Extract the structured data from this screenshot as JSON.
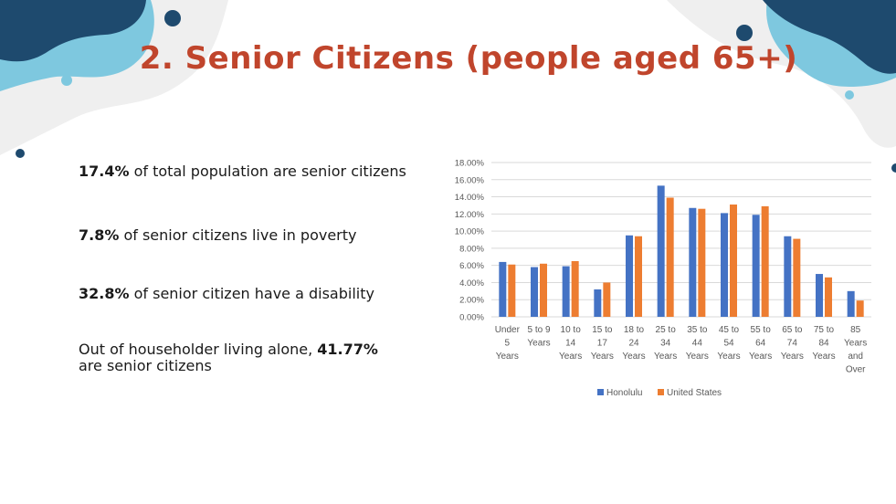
{
  "slide": {
    "title": "2. Senior Citizens (people aged 65+)"
  },
  "stats": [
    {
      "bold": "17.4%",
      "text": " of total  population are senior citizens"
    },
    {
      "bold": "7.8%",
      "text": " of senior citizens live in poverty"
    },
    {
      "bold": "32.8%",
      "text": " of senior citizen have a disability"
    },
    {
      "prefix": "Out of householder living alone, ",
      "bold": "41.77%",
      "suffix": "are senior citizens"
    }
  ],
  "colors": {
    "title": "#c0452c",
    "honolulu": "#4472c4",
    "united_states": "#ed7d31",
    "deco_dark": "#1e4a6e",
    "deco_light": "#7ec8df",
    "deco_grey": "#eeeeee"
  },
  "chart_data": {
    "type": "bar",
    "categories": [
      [
        "Under",
        "5",
        "Years"
      ],
      [
        "5 to 9",
        "Years"
      ],
      [
        "10 to",
        "14",
        "Years"
      ],
      [
        "15 to",
        "17",
        "Years"
      ],
      [
        "18 to",
        "24",
        "Years"
      ],
      [
        "25 to",
        "34",
        "Years"
      ],
      [
        "35 to",
        "44",
        "Years"
      ],
      [
        "45 to",
        "54",
        "Years"
      ],
      [
        "55 to",
        "64",
        "Years"
      ],
      [
        "65 to",
        "74",
        "Years"
      ],
      [
        "75 to",
        "84",
        "Years"
      ],
      [
        "85",
        "Years",
        "and",
        "Over"
      ]
    ],
    "series": [
      {
        "name": "Honolulu",
        "values": [
          6.4,
          5.8,
          5.9,
          3.2,
          9.5,
          15.3,
          12.7,
          12.1,
          11.9,
          9.4,
          5.0,
          3.0
        ]
      },
      {
        "name": "United States",
        "values": [
          6.1,
          6.2,
          6.5,
          4.0,
          9.4,
          13.9,
          12.6,
          13.1,
          12.9,
          9.1,
          4.6,
          1.9
        ]
      }
    ],
    "ylim": [
      0,
      18
    ],
    "yticks": [
      "0.00%",
      "2.00%",
      "4.00%",
      "6.00%",
      "8.00%",
      "10.00%",
      "12.00%",
      "14.00%",
      "16.00%",
      "18.00%"
    ],
    "grid": true,
    "legend": "bottom-center"
  }
}
